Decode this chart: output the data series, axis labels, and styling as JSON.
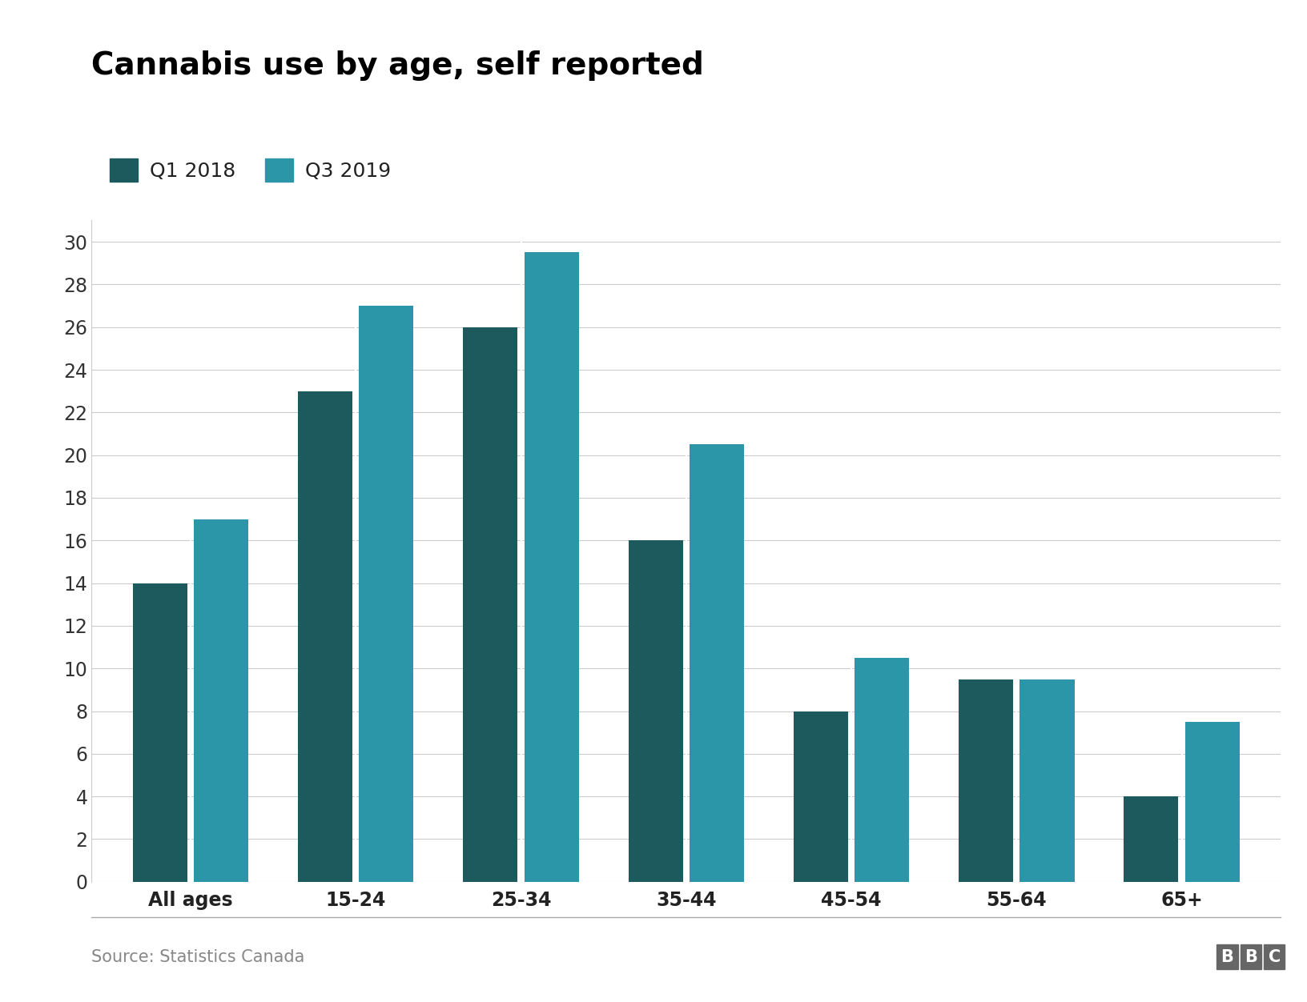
{
  "title": "Cannabis use by age, self reported",
  "categories": [
    "All ages",
    "15-24",
    "25-34",
    "35-44",
    "45-54",
    "55-64",
    "65+"
  ],
  "q1_2018": [
    14.0,
    23.0,
    26.0,
    16.0,
    8.0,
    9.5,
    4.0
  ],
  "q3_2019": [
    17.0,
    27.0,
    29.5,
    20.5,
    10.5,
    9.5,
    7.5
  ],
  "color_q1": "#1d5a5e",
  "color_q3": "#2b96a8",
  "legend_labels": [
    "Q1 2018",
    "Q3 2019"
  ],
  "ylim": [
    0,
    31
  ],
  "yticks": [
    0,
    2,
    4,
    6,
    8,
    10,
    12,
    14,
    16,
    18,
    20,
    22,
    24,
    26,
    28,
    30
  ],
  "source_text": "Source: Statistics Canada",
  "background_color": "#ffffff",
  "bar_gap": 0.04,
  "group_width": 0.7,
  "title_fontsize": 28,
  "legend_fontsize": 18,
  "tick_fontsize": 17,
  "source_fontsize": 15
}
